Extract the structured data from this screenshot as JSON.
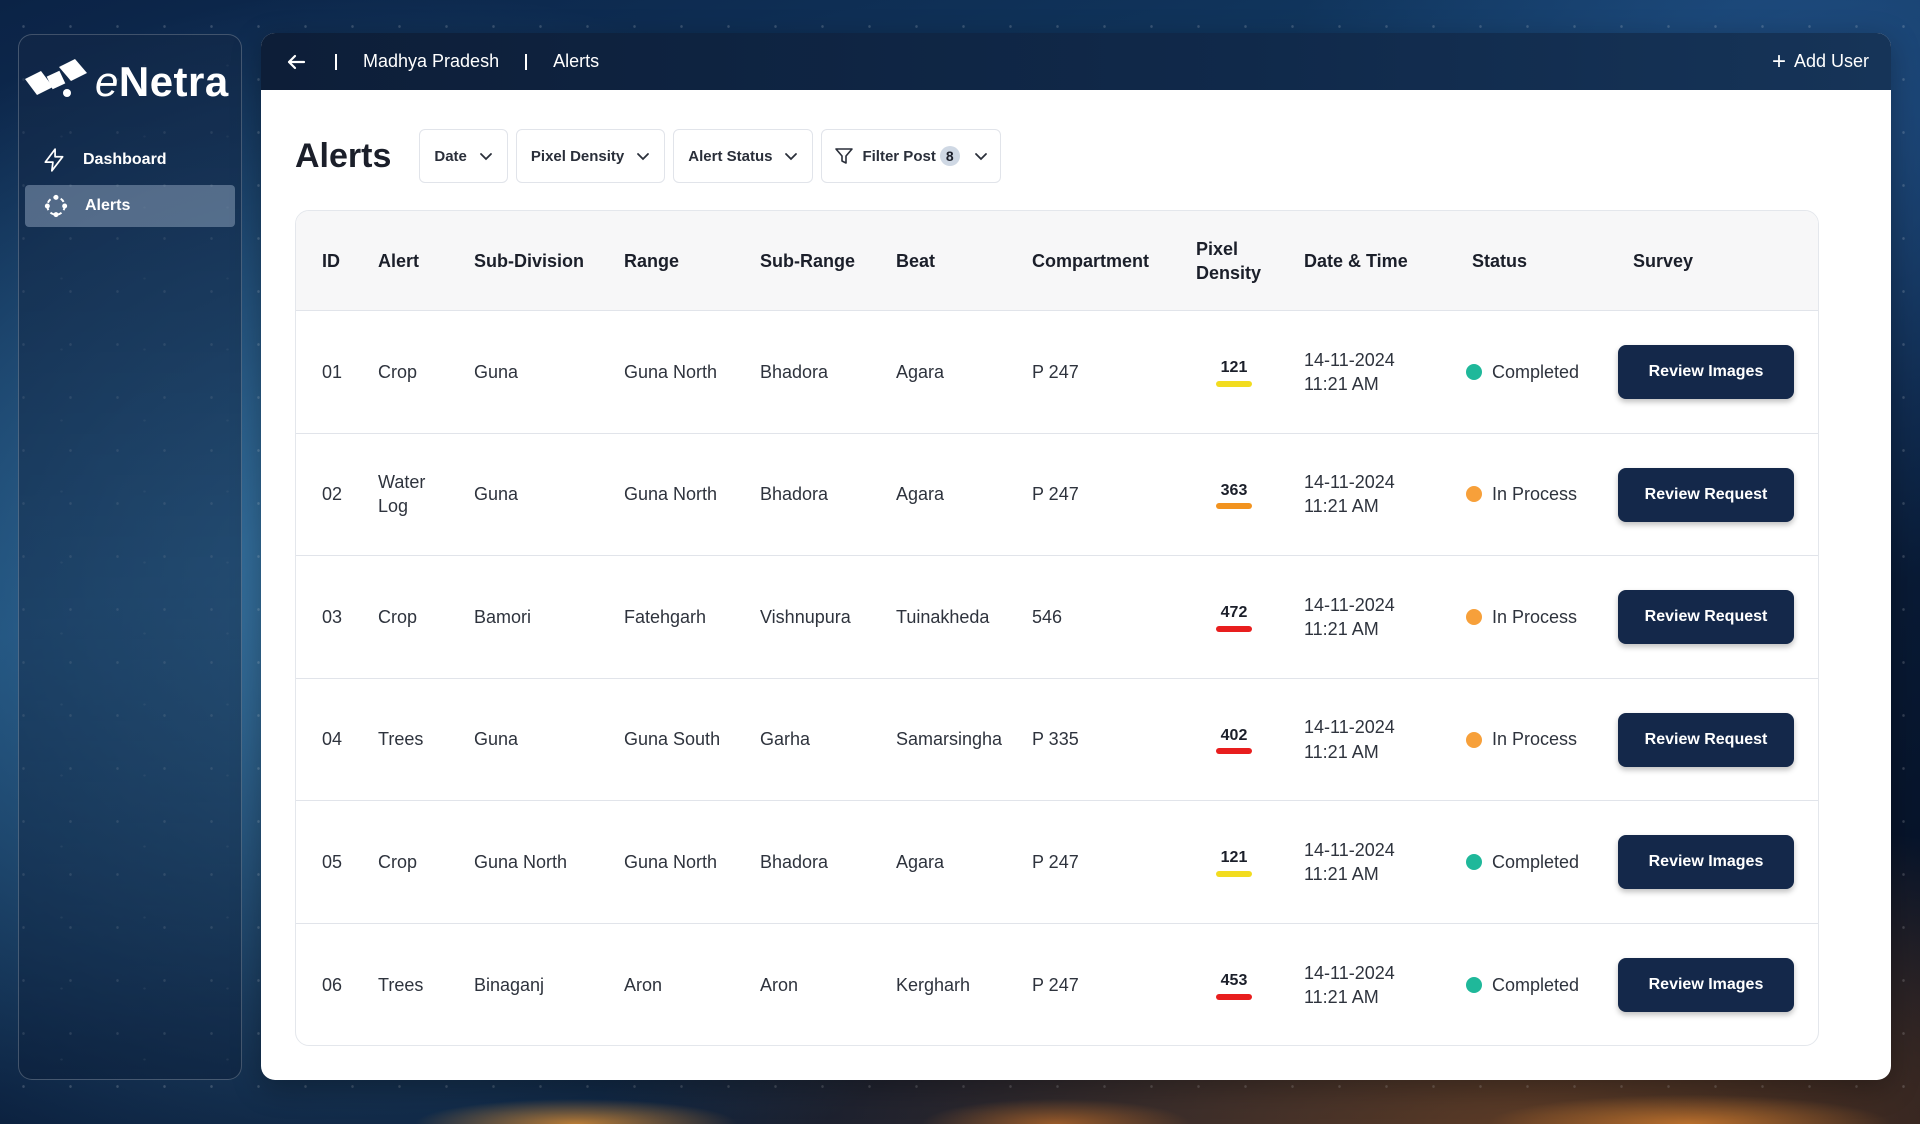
{
  "app": {
    "logo_text_e": "e",
    "logo_text_rest": "Netra"
  },
  "sidebar": {
    "items": [
      {
        "label": "Dashboard",
        "icon": "lightning-icon",
        "active": false
      },
      {
        "label": "Alerts",
        "icon": "alerts-icon",
        "active": true
      }
    ]
  },
  "topbar": {
    "breadcrumb": [
      "Madhya Pradesh",
      "Alerts"
    ],
    "add_user_label": "Add User"
  },
  "page": {
    "title": "Alerts"
  },
  "filters": {
    "date": "Date",
    "pixel_density": "Pixel Density",
    "alert_status": "Alert Status",
    "filter_post": "Filter Post",
    "filter_post_count": "8"
  },
  "table": {
    "columns": [
      "ID",
      "Alert",
      "Sub-Division",
      "Range",
      "Sub-Range",
      "Beat",
      "Compartment",
      "Pixel Density",
      "Date & Time",
      "Status",
      "Survey"
    ],
    "rows": [
      {
        "id": "01",
        "alert": "Crop",
        "subdivision": "Guna",
        "range": "Guna North",
        "subrange": "Bhadora",
        "beat": "Agara",
        "compartment": "P 247",
        "density": "121",
        "density_color": "#f2dc1f",
        "date": "14-11-2024",
        "time": "11:21 AM",
        "status": "Completed",
        "status_color": "#1fb89a",
        "action": "Review Images"
      },
      {
        "id": "02",
        "alert": "Water Log",
        "subdivision": "Guna",
        "range": "Guna North",
        "subrange": "Bhadora",
        "beat": "Agara",
        "compartment": "P 247",
        "density": "363",
        "density_color": "#f2931f",
        "date": "14-11-2024",
        "time": "11:21 AM",
        "status": "In Process",
        "status_color": "#f7a03a",
        "action": "Review Request"
      },
      {
        "id": "03",
        "alert": "Crop",
        "subdivision": "Bamori",
        "range": "Fatehgarh",
        "subrange": "Vishnupura",
        "beat": "Tuinakheda",
        "compartment": "546",
        "density": "472",
        "density_color": "#e81e1e",
        "date": "14-11-2024",
        "time": "11:21 AM",
        "status": "In Process",
        "status_color": "#f7a03a",
        "action": "Review Request"
      },
      {
        "id": "04",
        "alert": "Trees",
        "subdivision": "Guna",
        "range": "Guna South",
        "subrange": "Garha",
        "beat": "Samarsingha",
        "compartment": "P 335",
        "density": "402",
        "density_color": "#e81e1e",
        "date": "14-11-2024",
        "time": "11:21 AM",
        "status": "In Process",
        "status_color": "#f7a03a",
        "action": "Review Request"
      },
      {
        "id": "05",
        "alert": "Crop",
        "subdivision": "Guna North",
        "range": "Guna North",
        "subrange": "Bhadora",
        "beat": "Agara",
        "compartment": "P 247",
        "density": "121",
        "density_color": "#f2dc1f",
        "date": "14-11-2024",
        "time": "11:21 AM",
        "status": "Completed",
        "status_color": "#1fb89a",
        "action": "Review Images"
      },
      {
        "id": "06",
        "alert": "Trees",
        "subdivision": "Binaganj",
        "range": "Aron",
        "subrange": "Aron",
        "beat": "Kergharh",
        "compartment": "P 247",
        "density": "453",
        "density_color": "#e81e1e",
        "date": "14-11-2024",
        "time": "11:21 AM",
        "status": "Completed",
        "status_color": "#1fb89a",
        "action": "Review Images"
      }
    ]
  },
  "colors": {
    "action_bg": "#14284a",
    "topbar_bg": "#0d1e38"
  }
}
